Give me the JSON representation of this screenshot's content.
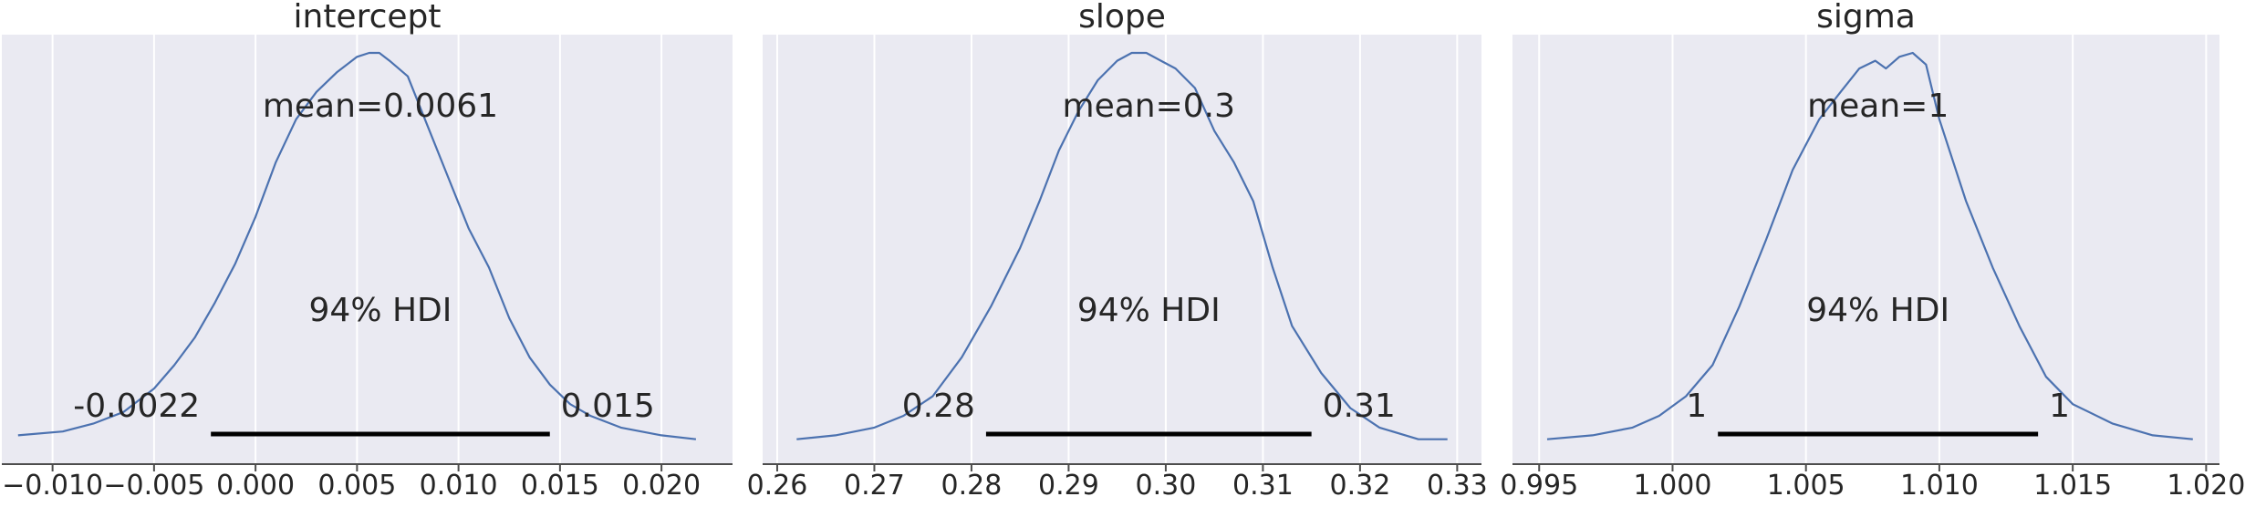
{
  "chart_data": [
    {
      "type": "area",
      "title": "intercept",
      "xlim": [
        -0.0125,
        0.0235
      ],
      "ticks": [
        -0.01,
        -0.005,
        0.0,
        0.005,
        0.01,
        0.015,
        0.02
      ],
      "tick_labels": [
        "−0.010",
        "−0.005",
        "0.000",
        "0.005",
        "0.010",
        "0.015",
        "0.020"
      ],
      "mean_label": "mean=0.0061",
      "hdi_label": "94% HDI",
      "hdi": [
        -0.0022,
        0.0145
      ],
      "hdi_low_label": "-0.0022",
      "hdi_high_label": "0.015",
      "density": {
        "x": [
          -0.0117,
          -0.0095,
          -0.008,
          -0.0065,
          -0.005,
          -0.004,
          -0.003,
          -0.002,
          -0.001,
          0.0,
          0.001,
          0.002,
          0.003,
          0.004,
          0.005,
          0.0056,
          0.0061,
          0.0066,
          0.0075,
          0.0085,
          0.0095,
          0.0105,
          0.0115,
          0.0125,
          0.0135,
          0.0145,
          0.0155,
          0.0165,
          0.018,
          0.02,
          0.0217
        ],
        "y": [
          0.02,
          0.03,
          0.05,
          0.08,
          0.14,
          0.2,
          0.27,
          0.36,
          0.46,
          0.58,
          0.72,
          0.83,
          0.9,
          0.95,
          0.99,
          1.0,
          1.0,
          0.98,
          0.94,
          0.81,
          0.68,
          0.55,
          0.45,
          0.32,
          0.22,
          0.15,
          0.1,
          0.07,
          0.04,
          0.02,
          0.01
        ]
      }
    },
    {
      "type": "area",
      "title": "slope",
      "xlim": [
        0.2585,
        0.3325
      ],
      "ticks": [
        0.26,
        0.27,
        0.28,
        0.29,
        0.3,
        0.31,
        0.32,
        0.33
      ],
      "tick_labels": [
        "0.26",
        "0.27",
        "0.28",
        "0.29",
        "0.30",
        "0.31",
        "0.32",
        "0.33"
      ],
      "mean_label": "mean=0.3",
      "hdi_label": "94% HDI",
      "hdi": [
        0.2815,
        0.315
      ],
      "hdi_low_label": "0.28",
      "hdi_high_label": "0.31",
      "density": {
        "x": [
          0.262,
          0.266,
          0.27,
          0.273,
          0.276,
          0.279,
          0.282,
          0.285,
          0.287,
          0.289,
          0.291,
          0.293,
          0.295,
          0.2965,
          0.298,
          0.2995,
          0.301,
          0.303,
          0.305,
          0.307,
          0.309,
          0.311,
          0.313,
          0.316,
          0.319,
          0.322,
          0.326,
          0.329
        ],
        "y": [
          0.01,
          0.02,
          0.04,
          0.07,
          0.12,
          0.22,
          0.35,
          0.5,
          0.62,
          0.75,
          0.85,
          0.93,
          0.98,
          1.0,
          1.0,
          0.98,
          0.96,
          0.91,
          0.8,
          0.72,
          0.62,
          0.45,
          0.3,
          0.18,
          0.09,
          0.04,
          0.01,
          0.01
        ]
      }
    },
    {
      "type": "area",
      "title": "sigma",
      "xlim": [
        0.994,
        1.0205
      ],
      "ticks": [
        0.995,
        1.0,
        1.005,
        1.01,
        1.015,
        1.02
      ],
      "tick_labels": [
        "0.995",
        "1.000",
        "1.005",
        "1.010",
        "1.015",
        "1.020"
      ],
      "mean_label": "mean=1",
      "hdi_label": "94% HDI",
      "hdi": [
        1.0017,
        1.0137
      ],
      "hdi_low_label": "1",
      "hdi_high_label": "1",
      "density": {
        "x": [
          0.9953,
          0.997,
          0.9985,
          0.9995,
          1.0005,
          1.0015,
          1.0025,
          1.0035,
          1.0045,
          1.0055,
          1.0063,
          1.007,
          1.0076,
          1.008,
          1.0085,
          1.009,
          1.0095,
          1.01,
          1.011,
          1.012,
          1.013,
          1.014,
          1.015,
          1.0165,
          1.018,
          1.0195
        ],
        "y": [
          0.01,
          0.02,
          0.04,
          0.07,
          0.12,
          0.2,
          0.35,
          0.52,
          0.7,
          0.83,
          0.9,
          0.96,
          0.98,
          0.96,
          0.99,
          1.0,
          0.97,
          0.83,
          0.62,
          0.45,
          0.3,
          0.17,
          0.1,
          0.05,
          0.02,
          0.01
        ]
      }
    }
  ],
  "colors": {
    "plot_background": "#eaeaf2",
    "grid": "#ffffff",
    "density_line": "#4c72b0",
    "hdi_bar": "#000000",
    "text": "#262626",
    "axis": "#4d4d4d"
  }
}
